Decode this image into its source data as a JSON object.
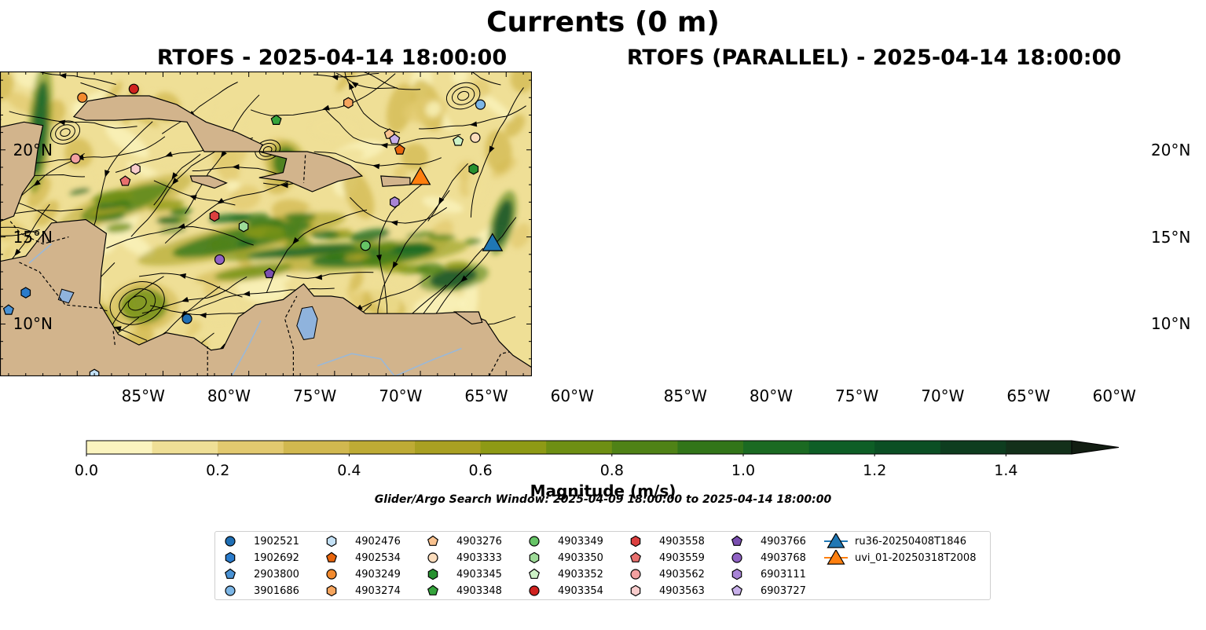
{
  "title": "Currents (0 m)",
  "panels": [
    {
      "title": "RTOFS - 2025-04-14 18:00:00"
    },
    {
      "title": "RTOFS (PARALLEL) - 2025-04-14 18:00:00"
    }
  ],
  "axes": {
    "lon_ticks": [
      "85°W",
      "80°W",
      "75°W",
      "70°W",
      "65°W",
      "60°W"
    ],
    "lon_values": [
      -85,
      -80,
      -75,
      -70,
      -65,
      -60
    ],
    "lat_ticks": [
      "20°N",
      "15°N",
      "10°N"
    ],
    "lat_values": [
      20,
      15,
      10
    ],
    "lon_range": [
      -89.5,
      -58.5
    ],
    "lat_range": [
      7.0,
      24.5
    ]
  },
  "colorbar": {
    "label": "Magnitude (m/s)",
    "ticks": [
      "0.0",
      "0.2",
      "0.4",
      "0.6",
      "0.8",
      "1.0",
      "1.2",
      "1.4"
    ],
    "tick_values": [
      0.0,
      0.2,
      0.4,
      0.6,
      0.8,
      1.0,
      1.2,
      1.4
    ],
    "min": 0.0,
    "max": 1.5,
    "extend": "max",
    "colors": [
      "#fbf4bf",
      "#efdf96",
      "#e2c96f",
      "#d1b84f",
      "#beab35",
      "#a9a022",
      "#8e9a15",
      "#6e8f13",
      "#4f8216",
      "#327519",
      "#1b6a22",
      "#0e5e26",
      "#0b4f24",
      "#0e3d1f",
      "#13301a"
    ]
  },
  "search_window": "Glider/Argo Search Window: 2025-04-09 18:00:00 to 2025-04-14 18:00:00",
  "legend": [
    {
      "label": "1902521",
      "marker": "circle",
      "color": "#1f6fb5"
    },
    {
      "label": "1902692",
      "marker": "hexagon",
      "color": "#2b7ccc"
    },
    {
      "label": "2903800",
      "marker": "pentagon",
      "color": "#4a92d4"
    },
    {
      "label": "3901686",
      "marker": "circle",
      "color": "#7cb6e6"
    },
    {
      "label": "4902476",
      "marker": "hexagon",
      "color": "#c4e1f6"
    },
    {
      "label": "4902534",
      "marker": "pentagon",
      "color": "#e8650c"
    },
    {
      "label": "4903249",
      "marker": "circle",
      "color": "#f28a2e"
    },
    {
      "label": "4903274",
      "marker": "hexagon",
      "color": "#f6a55e"
    },
    {
      "label": "4903276",
      "marker": "pentagon",
      "color": "#f9c28f"
    },
    {
      "label": "4903333",
      "marker": "circle",
      "color": "#fbdcbc"
    },
    {
      "label": "4903345",
      "marker": "hexagon",
      "color": "#27902f"
    },
    {
      "label": "4903348",
      "marker": "pentagon",
      "color": "#35a43c"
    },
    {
      "label": "4903349",
      "marker": "circle",
      "color": "#66c466"
    },
    {
      "label": "4903350",
      "marker": "hexagon",
      "color": "#9edb98"
    },
    {
      "label": "4903352",
      "marker": "pentagon",
      "color": "#cdf2c6"
    },
    {
      "label": "4903354",
      "marker": "circle",
      "color": "#d0221f"
    },
    {
      "label": "4903558",
      "marker": "hexagon",
      "color": "#dc3f3f"
    },
    {
      "label": "4903559",
      "marker": "pentagon",
      "color": "#e8706e"
    },
    {
      "label": "4903562",
      "marker": "circle",
      "color": "#f2a0a0"
    },
    {
      "label": "4903563",
      "marker": "hexagon",
      "color": "#f8cccc"
    },
    {
      "label": "4903766",
      "marker": "pentagon",
      "color": "#7a4fb0"
    },
    {
      "label": "4903768",
      "marker": "circle",
      "color": "#9062c4"
    },
    {
      "label": "6903111",
      "marker": "hexagon",
      "color": "#a884d6"
    },
    {
      "label": "6903727",
      "marker": "pentagon",
      "color": "#c8b0ea"
    },
    {
      "label": "ru36-20250408T1846",
      "marker": "triangle",
      "color": "#1f77b4"
    },
    {
      "label": "uvi_01-20250318T2008",
      "marker": "triangle",
      "color": "#ff7f0e"
    }
  ],
  "floats": [
    {
      "id": "1902521",
      "lon": -78.6,
      "lat": 10.3
    },
    {
      "id": "1902692",
      "lon": -88.0,
      "lat": 11.8
    },
    {
      "id": "2903800",
      "lon": -89.0,
      "lat": 10.8
    },
    {
      "id": "3901686",
      "lon": -61.5,
      "lat": 22.6
    },
    {
      "id": "4902476",
      "lon": -84.0,
      "lat": 7.1
    },
    {
      "id": "4902534",
      "lon": -66.2,
      "lat": 20.0
    },
    {
      "id": "4903249",
      "lon": -84.7,
      "lat": 23.0
    },
    {
      "id": "4903274",
      "lon": -69.2,
      "lat": 22.7
    },
    {
      "id": "4903276",
      "lon": -66.8,
      "lat": 20.9
    },
    {
      "id": "4903333",
      "lon": -61.8,
      "lat": 20.7
    },
    {
      "id": "4903345",
      "lon": -61.9,
      "lat": 18.9
    },
    {
      "id": "4903348",
      "lon": -73.4,
      "lat": 21.7
    },
    {
      "id": "4903349",
      "lon": -68.2,
      "lat": 14.5
    },
    {
      "id": "4903350",
      "lon": -75.3,
      "lat": 15.6
    },
    {
      "id": "4903352",
      "lon": -62.8,
      "lat": 20.5
    },
    {
      "id": "4903354",
      "lon": -81.7,
      "lat": 23.5
    },
    {
      "id": "4903558",
      "lon": -77.0,
      "lat": 16.2
    },
    {
      "id": "4903559",
      "lon": -82.2,
      "lat": 18.2
    },
    {
      "id": "4903562",
      "lon": -85.1,
      "lat": 19.5
    },
    {
      "id": "4903563",
      "lon": -81.6,
      "lat": 18.9
    },
    {
      "id": "4903766",
      "lon": -73.8,
      "lat": 12.9
    },
    {
      "id": "4903768",
      "lon": -76.7,
      "lat": 13.7
    },
    {
      "id": "6903111",
      "lon": -66.5,
      "lat": 17.0
    },
    {
      "id": "6903727",
      "lon": -66.5,
      "lat": 20.6
    }
  ],
  "gliders": [
    {
      "id": "ru36-20250408T1846",
      "lon": -60.8,
      "lat": 14.4
    },
    {
      "id": "uvi_01-20250318T2008",
      "lon": -65.0,
      "lat": 18.2
    }
  ]
}
